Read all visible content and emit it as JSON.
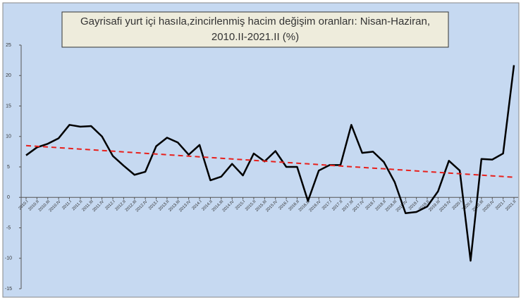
{
  "chart_data": {
    "type": "line",
    "title_lines": [
      "Gayrisafi yurt içi hasıla,zincirlenmiş hacim  değişim oranları: Nisan-Haziran,",
      "2010.II-2021.II (%)"
    ],
    "categories": [
      "2010.I",
      "2010.II",
      "2010.III",
      "2010.IV",
      "2011.I",
      "2011.II",
      "2011.III",
      "2011.IV",
      "2012.I",
      "2012.II",
      "2012.III",
      "2012.IV",
      "2013.I",
      "2013.II",
      "2013.III",
      "2013.IV",
      "2014.I",
      "2014.II",
      "2014.III",
      "2014.IV",
      "2015.I",
      "2015.II",
      "2015.III",
      "2015.IV",
      "2016.I",
      "2016.II",
      "2016.III",
      "2016.IV",
      "2017.I",
      "2017.II",
      "2017.III",
      "2017.IV",
      "2018.I",
      "2018.II",
      "2018.III",
      "2018.IV",
      "2019.I",
      "2019.II",
      "2019.III",
      "2019.IV",
      "2020.I",
      "2020.II",
      "2020.III",
      "2020.IV",
      "2021.I",
      "2021.II"
    ],
    "series": [
      {
        "color": "#000000",
        "dashed": false,
        "values": [
          6.9,
          8.2,
          8.8,
          9.7,
          11.9,
          11.6,
          11.7,
          10.0,
          6.8,
          5.2,
          3.7,
          4.2,
          8.4,
          9.8,
          9.0,
          7.0,
          8.6,
          2.8,
          3.4,
          5.5,
          3.6,
          7.2,
          5.9,
          7.6,
          5.0,
          5.0,
          -0.6,
          4.4,
          5.3,
          5.3,
          11.9,
          7.3,
          7.5,
          5.8,
          2.5,
          -2.6,
          -2.4,
          -1.5,
          1.0,
          6.0,
          4.4,
          -10.4,
          6.3,
          6.2,
          7.2,
          21.7
        ]
      },
      {
        "color": "#e8201c",
        "dashed": true,
        "values": [
          8.5,
          8.38,
          8.27,
          8.15,
          8.04,
          7.92,
          7.81,
          7.69,
          7.58,
          7.46,
          7.34,
          7.23,
          7.11,
          7.0,
          6.88,
          6.77,
          6.65,
          6.54,
          6.42,
          6.3,
          6.19,
          6.07,
          5.96,
          5.84,
          5.73,
          5.61,
          5.5,
          5.38,
          5.26,
          5.15,
          5.03,
          4.92,
          4.8,
          4.69,
          4.57,
          4.46,
          4.34,
          4.22,
          4.11,
          3.99,
          3.88,
          3.76,
          3.65,
          3.53,
          3.42,
          3.3
        ]
      }
    ],
    "ylim": [
      -15,
      25
    ],
    "yticks": [
      -15,
      -10,
      -5,
      0,
      5,
      10,
      15,
      20,
      25
    ],
    "grid": false
  }
}
